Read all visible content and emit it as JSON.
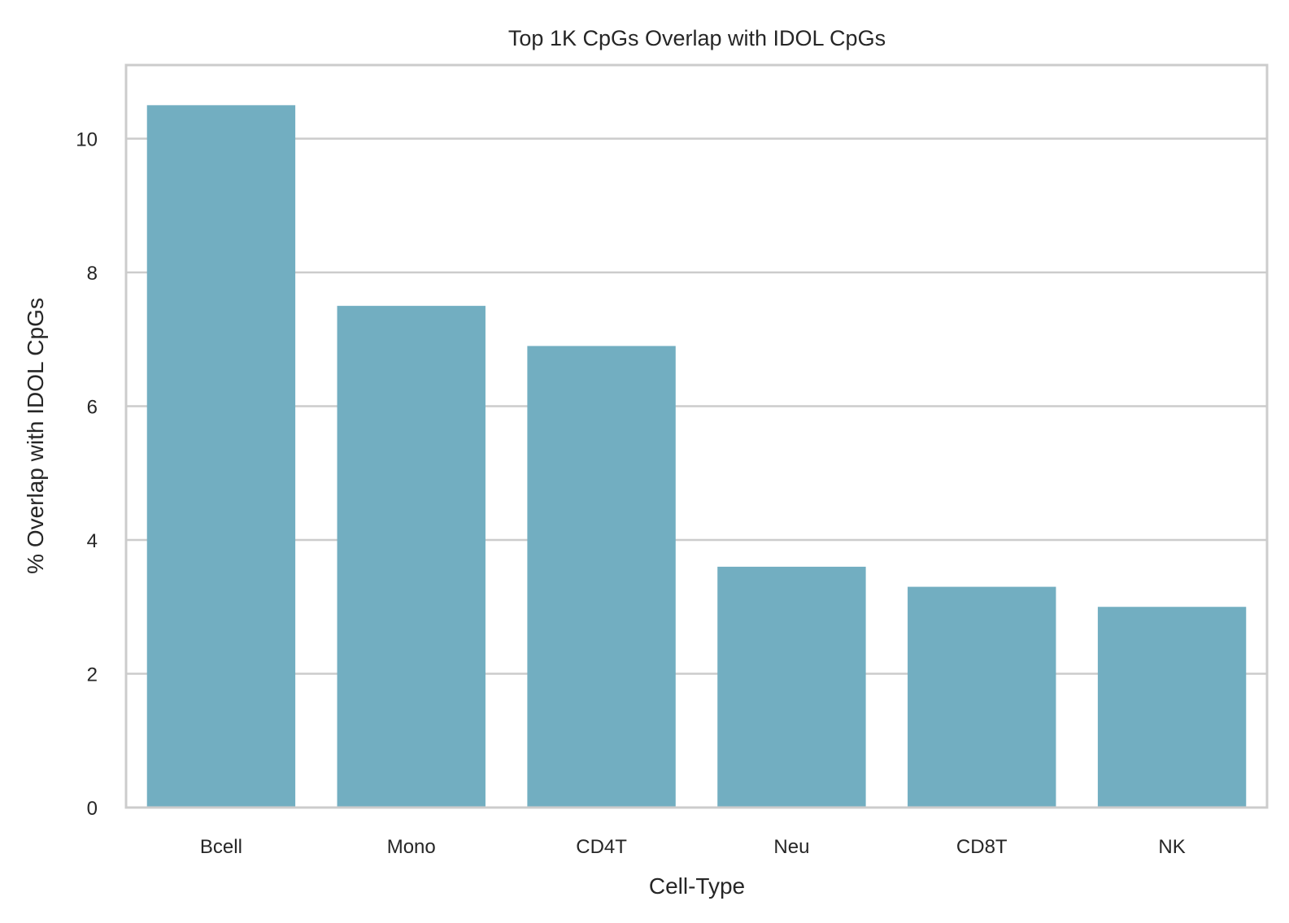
{
  "chart_data": {
    "type": "bar",
    "title": "Top 1K CpGs Overlap with IDOL CpGs",
    "xlabel": "Cell-Type",
    "ylabel": "% Overlap with IDOL CpGs",
    "categories": [
      "Bcell",
      "Mono",
      "CD4T",
      "Neu",
      "CD8T",
      "NK"
    ],
    "values": [
      10.5,
      7.5,
      6.9,
      3.6,
      3.3,
      3.0
    ],
    "ylim": [
      0,
      11.1
    ],
    "yticks": [
      0,
      2,
      4,
      6,
      8,
      10
    ],
    "grid": true,
    "bar_color": "#72aec1",
    "grid_color": "#cccccc",
    "text_color": "#262626"
  }
}
